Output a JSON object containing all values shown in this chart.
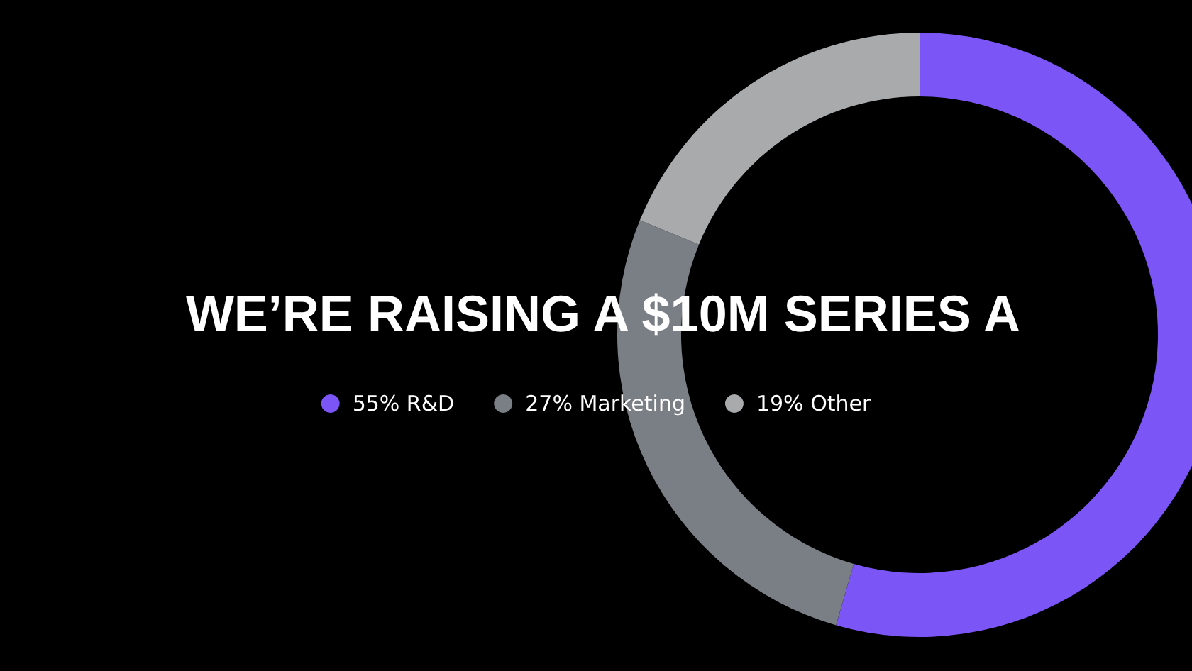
{
  "chart_data": {
    "type": "donut",
    "title": "WE’RE RAISING A $10M SERIES A",
    "categories": [
      "R&D",
      "Marketing",
      "Other"
    ],
    "values": [
      55,
      27,
      19
    ],
    "value_labels": [
      "55%",
      "27%",
      "19%"
    ],
    "colors": [
      "#7b55f5",
      "#7a7e85",
      "#a8aaac"
    ],
    "legend": "left"
  }
}
